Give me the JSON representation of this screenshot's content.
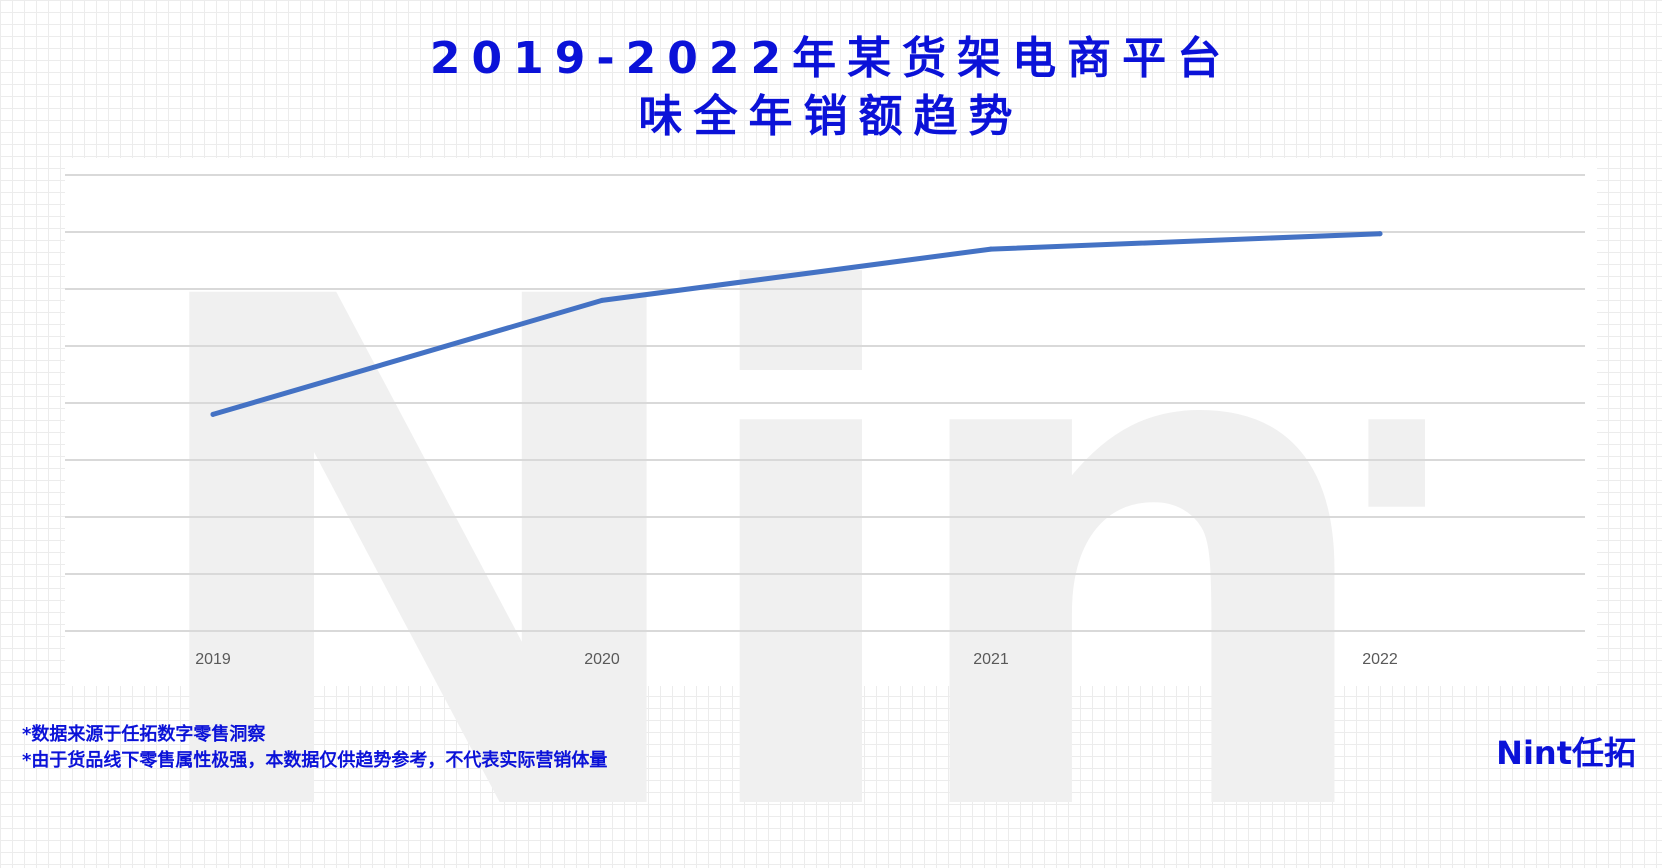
{
  "title": {
    "line1": "2019-2022年某货架电商平台",
    "line2": "味全年销额趋势"
  },
  "watermark": "Nint",
  "chart_data": {
    "type": "line",
    "categories": [
      "2019",
      "2020",
      "2021",
      "2022"
    ],
    "series": [
      {
        "values": [
          38,
          58,
          67,
          69.7
        ],
        "color": "#4472c4"
      }
    ],
    "ylim": [
      0,
      80
    ],
    "gridlines": 9,
    "y_axis_labels": false,
    "grid": true,
    "legend": "none"
  },
  "footnotes": {
    "source": "*数据来源于任拓数字零售洞察",
    "disclaimer": "*由于货品线下零售属性极强，本数据仅供趋势参考，不代表实际营销体量"
  },
  "logo": {
    "text": "Nint任拓"
  },
  "colors": {
    "accent": "#0b12d8",
    "series": "#4472c4",
    "grid": "#d9d9d9",
    "watermark": "#f0f0f0"
  }
}
